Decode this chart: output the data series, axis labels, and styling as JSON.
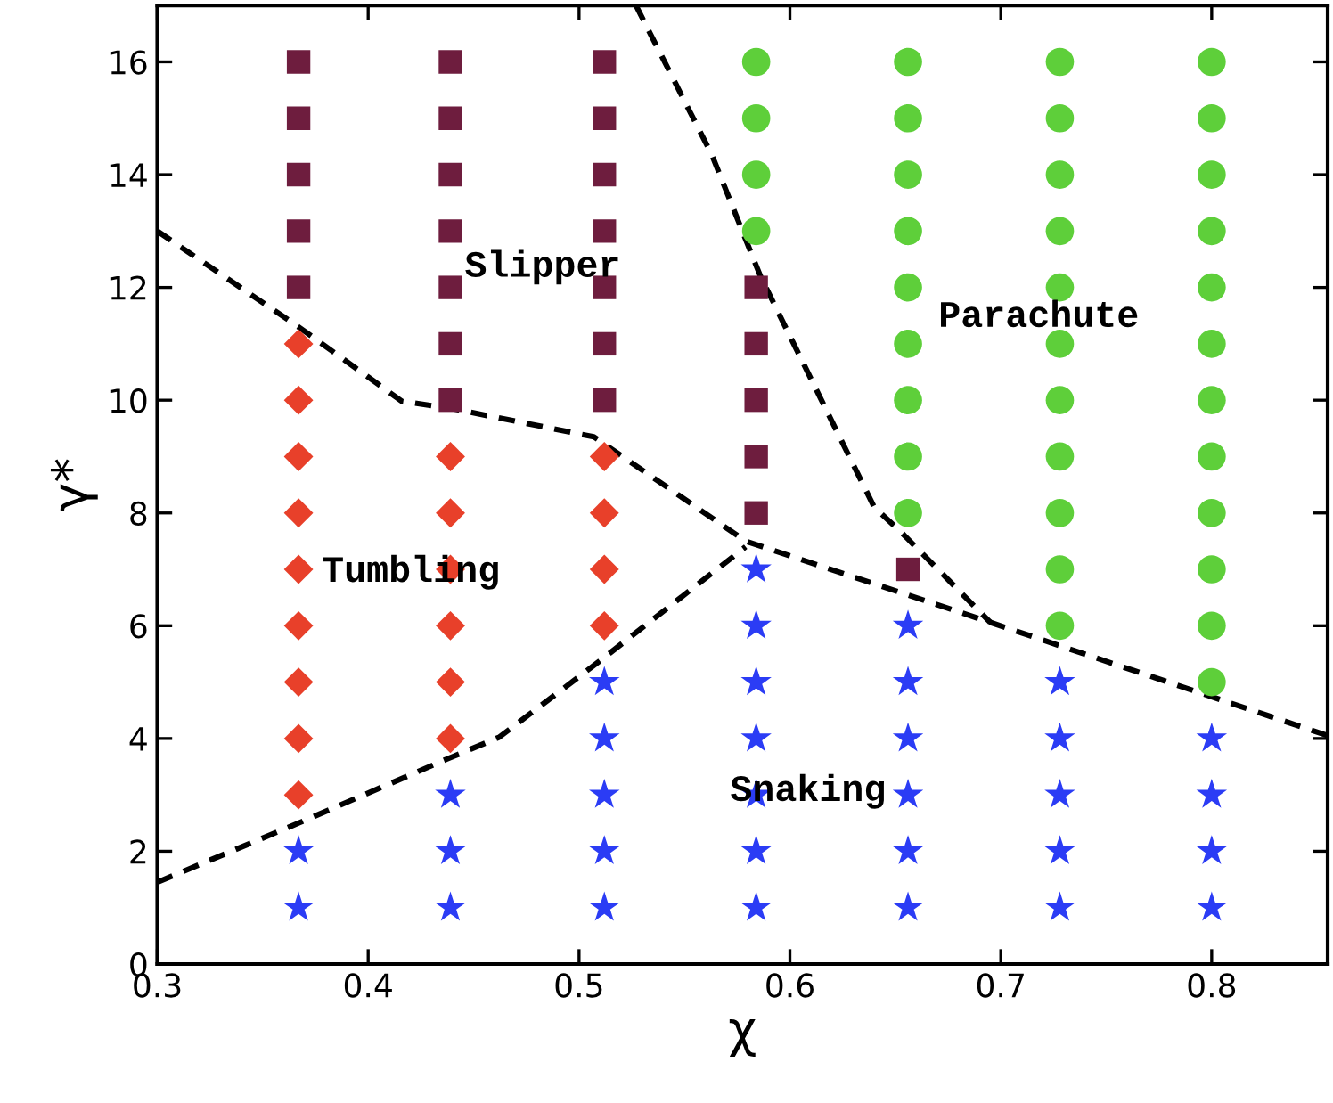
{
  "chart_data": {
    "type": "scatter",
    "xlabel": "χ",
    "ylabel": "γ*",
    "xlim": [
      0.3,
      0.855
    ],
    "ylim": [
      0,
      17
    ],
    "xticks": [
      {
        "value": 0.3,
        "label": "0.3"
      },
      {
        "value": 0.4,
        "label": "0.4"
      },
      {
        "value": 0.5,
        "label": "0.5"
      },
      {
        "value": 0.6,
        "label": "0.6"
      },
      {
        "value": 0.7,
        "label": "0.7"
      },
      {
        "value": 0.8,
        "label": "0.8"
      }
    ],
    "yticks": [
      0,
      2,
      4,
      6,
      8,
      10,
      12,
      14,
      16
    ],
    "grid": false,
    "legend": false,
    "series": [
      {
        "marker": "square",
        "color": "#6e1d3e",
        "x": [
          0.367,
          0.367,
          0.367,
          0.367,
          0.367,
          0.439,
          0.439,
          0.439,
          0.439,
          0.439,
          0.439,
          0.439,
          0.512,
          0.512,
          0.512,
          0.512,
          0.512,
          0.512,
          0.512,
          0.584,
          0.584,
          0.584,
          0.584,
          0.584,
          0.656
        ],
        "values": [
          12,
          13,
          14,
          15,
          16,
          10,
          11,
          12,
          13,
          14,
          15,
          16,
          10,
          11,
          12,
          13,
          14,
          15,
          16,
          8,
          9,
          10,
          11,
          12,
          7
        ]
      },
      {
        "marker": "diamond",
        "color": "#e8402a",
        "x": [
          0.367,
          0.367,
          0.367,
          0.367,
          0.367,
          0.367,
          0.367,
          0.367,
          0.367,
          0.439,
          0.439,
          0.439,
          0.439,
          0.439,
          0.439,
          0.512,
          0.512,
          0.512,
          0.512
        ],
        "values": [
          3,
          4,
          5,
          6,
          7,
          8,
          9,
          10,
          11,
          4,
          5,
          6,
          7,
          8,
          9,
          6,
          7,
          8,
          9
        ]
      },
      {
        "marker": "star",
        "color": "#2b3cf5",
        "x": [
          0.367,
          0.367,
          0.439,
          0.439,
          0.439,
          0.512,
          0.512,
          0.512,
          0.512,
          0.512,
          0.584,
          0.584,
          0.584,
          0.584,
          0.584,
          0.584,
          0.584,
          0.656,
          0.656,
          0.656,
          0.656,
          0.656,
          0.656,
          0.728,
          0.728,
          0.728,
          0.728,
          0.728,
          0.8,
          0.8,
          0.8,
          0.8
        ],
        "values": [
          1,
          2,
          1,
          2,
          3,
          1,
          2,
          3,
          4,
          5,
          1,
          2,
          3,
          4,
          5,
          6,
          7,
          1,
          2,
          3,
          4,
          5,
          6,
          1,
          2,
          3,
          4,
          5,
          1,
          2,
          3,
          4
        ]
      },
      {
        "marker": "circle",
        "color": "#5ecf3a",
        "x": [
          0.584,
          0.584,
          0.584,
          0.584,
          0.656,
          0.656,
          0.656,
          0.656,
          0.656,
          0.656,
          0.656,
          0.656,
          0.656,
          0.728,
          0.728,
          0.728,
          0.728,
          0.728,
          0.728,
          0.728,
          0.728,
          0.728,
          0.728,
          0.728,
          0.8,
          0.8,
          0.8,
          0.8,
          0.8,
          0.8,
          0.8,
          0.8,
          0.8,
          0.8,
          0.8,
          0.8
        ],
        "values": [
          13,
          14,
          15,
          16,
          8,
          9,
          10,
          11,
          12,
          13,
          14,
          15,
          16,
          6,
          7,
          8,
          9,
          10,
          11,
          12,
          13,
          14,
          15,
          16,
          5,
          6,
          7,
          8,
          9,
          10,
          11,
          12,
          13,
          14,
          15,
          16
        ]
      },
      {
        "type": "line",
        "marker": "none",
        "line_style": "dashed",
        "color": "#000000",
        "x": [
          0.3,
          0.367,
          0.416,
          0.44,
          0.507,
          0.579,
          0.695,
          0.855
        ],
        "values": [
          13.0,
          11.3,
          9.98,
          9.85,
          9.35,
          7.5,
          6.06,
          4.05
        ]
      },
      {
        "type": "line",
        "marker": "none",
        "line_style": "dashed",
        "color": "#000000",
        "x": [
          0.3,
          0.367,
          0.437,
          0.462,
          0.51,
          0.579
        ],
        "values": [
          1.45,
          2.5,
          3.63,
          4.02,
          5.38,
          7.4
        ]
      },
      {
        "type": "line",
        "marker": "none",
        "line_style": "dashed",
        "color": "#000000",
        "x": [
          0.527,
          0.563,
          0.586,
          0.64,
          0.653,
          0.695
        ],
        "values": [
          17.0,
          14.35,
          12.2,
          8.1,
          7.65,
          6.06
        ]
      }
    ],
    "annotations": [
      "Slipper",
      "Tumbling",
      "Snaking",
      "Parachute"
    ]
  }
}
